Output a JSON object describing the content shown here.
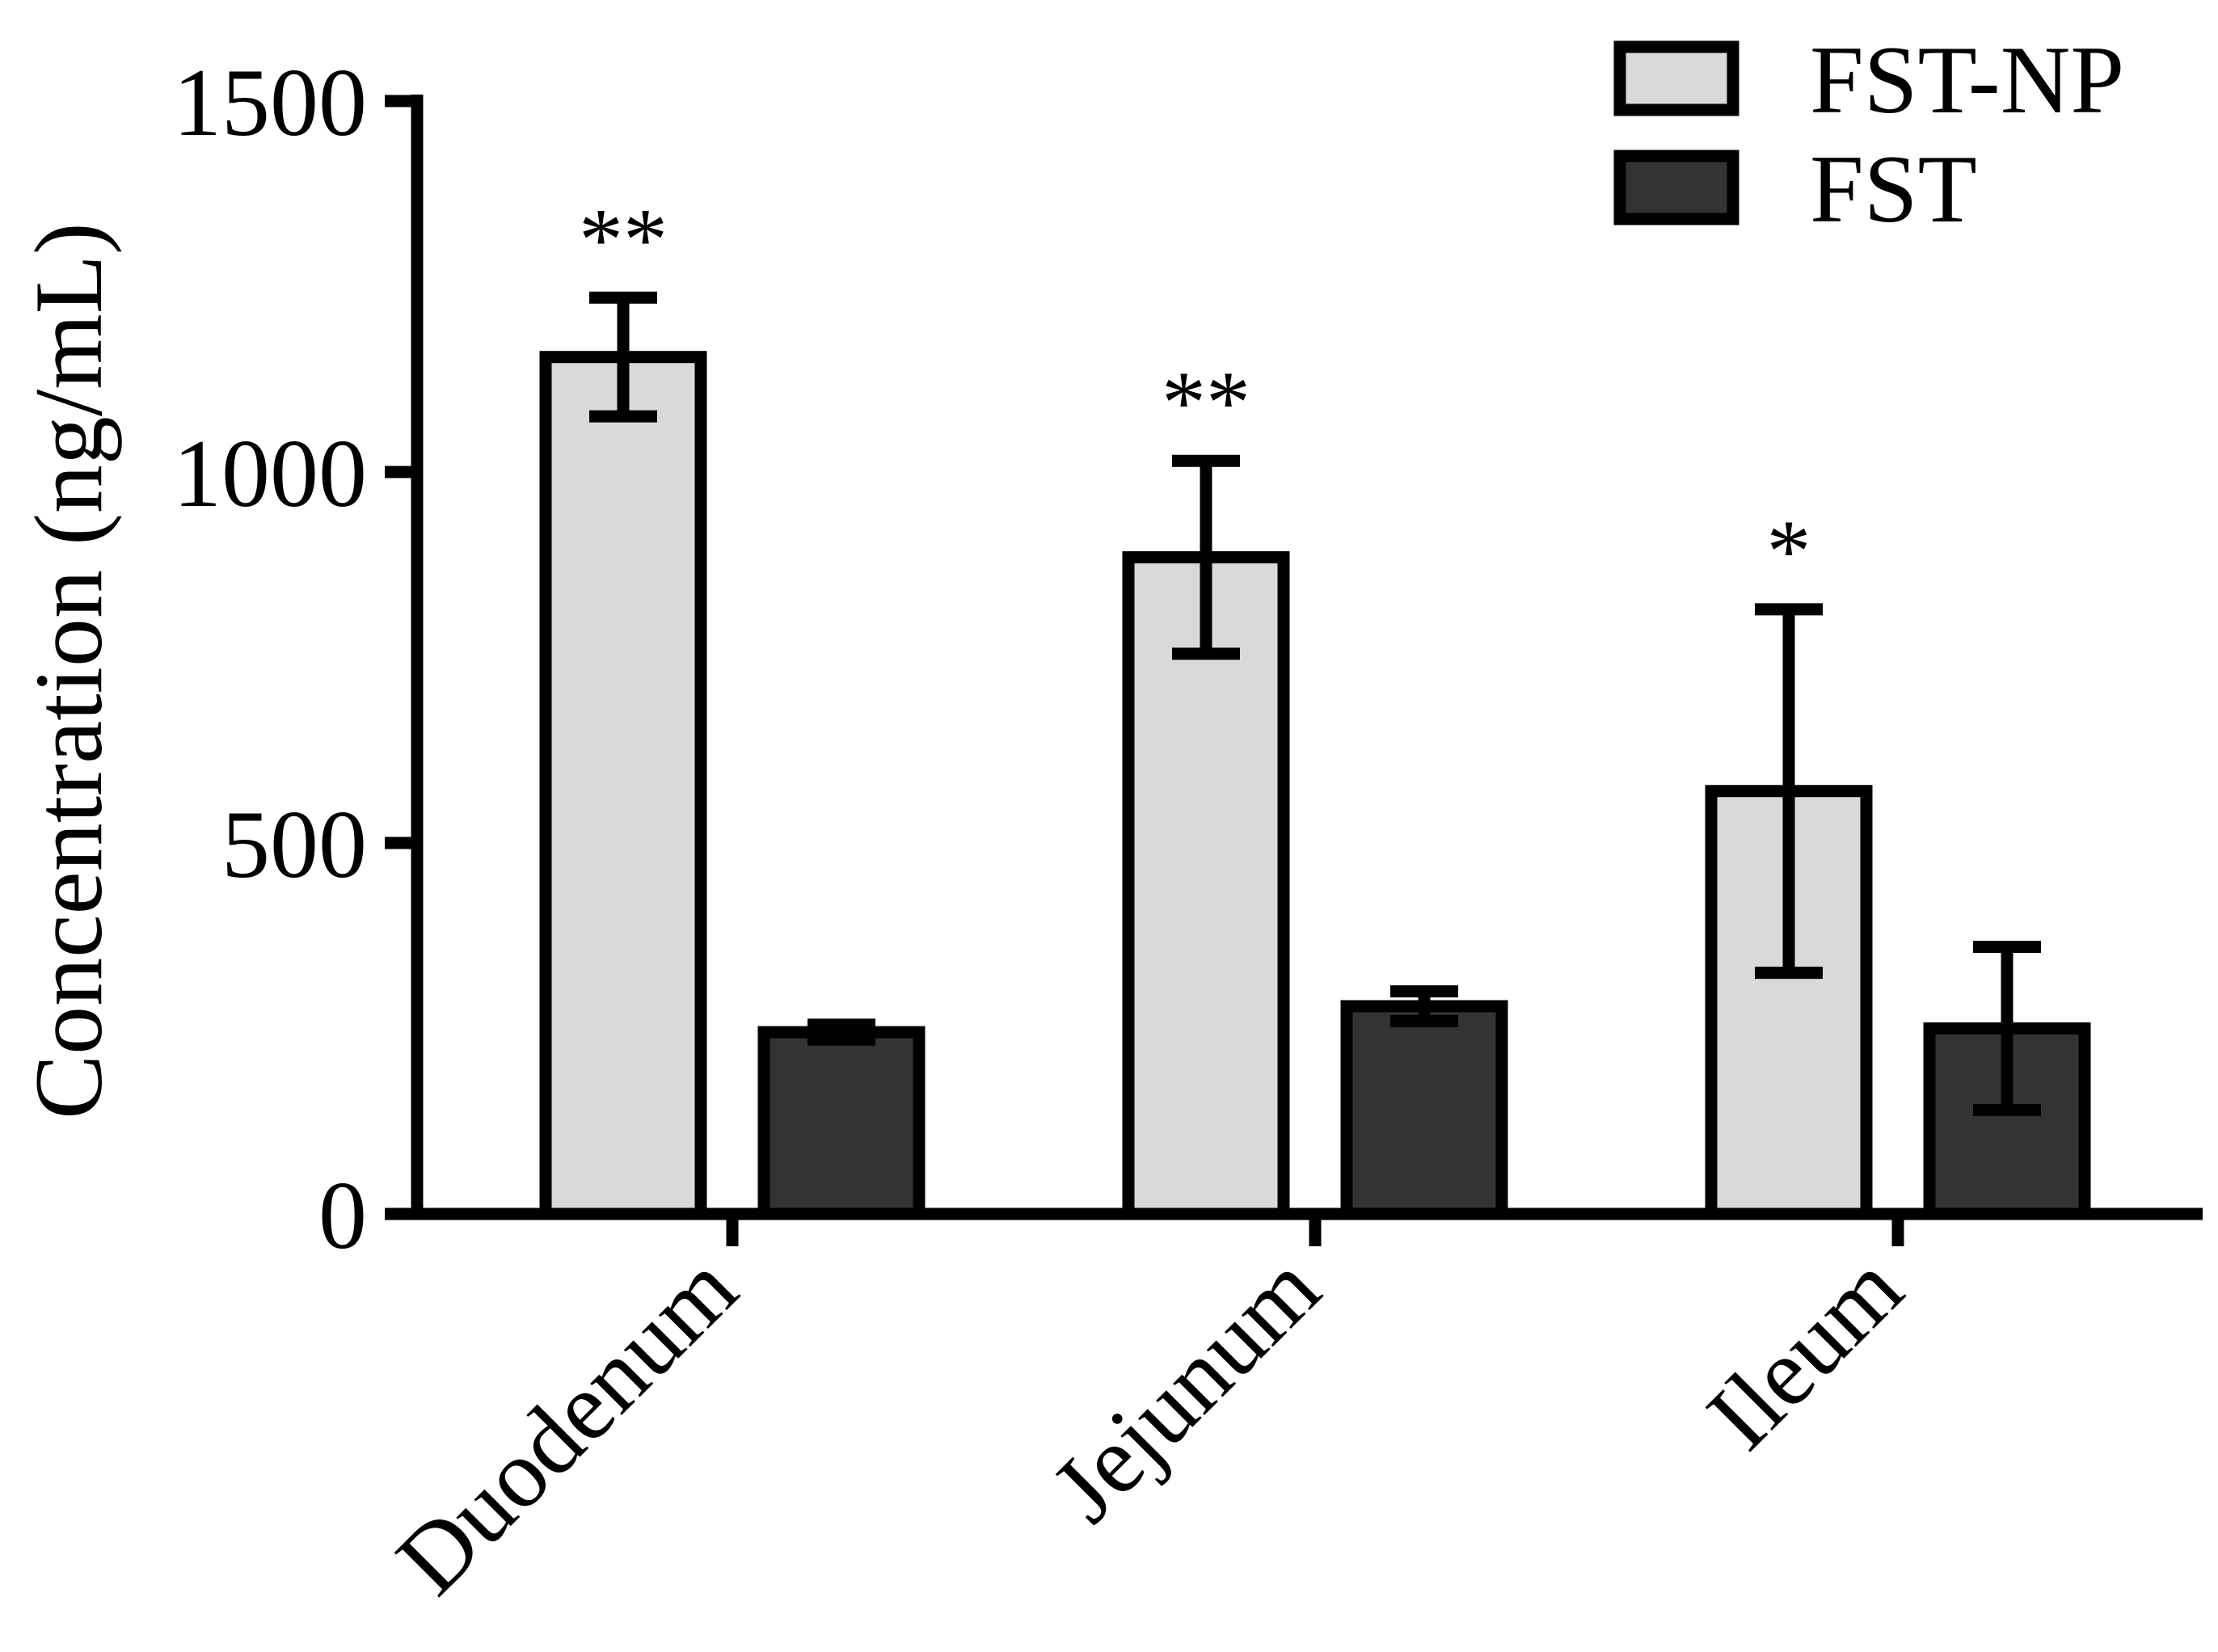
{
  "chart_data": {
    "type": "bar",
    "title": "",
    "xlabel": "",
    "ylabel": "Concentration (ng/mL)",
    "ylim": [
      0,
      1500
    ],
    "yticks": [
      0,
      500,
      1000,
      1500
    ],
    "categories": [
      "Duodenum",
      "Jejunum",
      "Ileum"
    ],
    "series": [
      {
        "name": "FST-NP",
        "color": "#d9d9d9",
        "values": [
          1155,
          885,
          570
        ],
        "errors": [
          80,
          130,
          245
        ]
      },
      {
        "name": "FST",
        "color": "#333333",
        "values": [
          245,
          280,
          250
        ],
        "errors": [
          10,
          20,
          110
        ]
      }
    ],
    "significance": [
      "**",
      "**",
      "*"
    ],
    "legend_position": "top-right",
    "grid": false
  }
}
